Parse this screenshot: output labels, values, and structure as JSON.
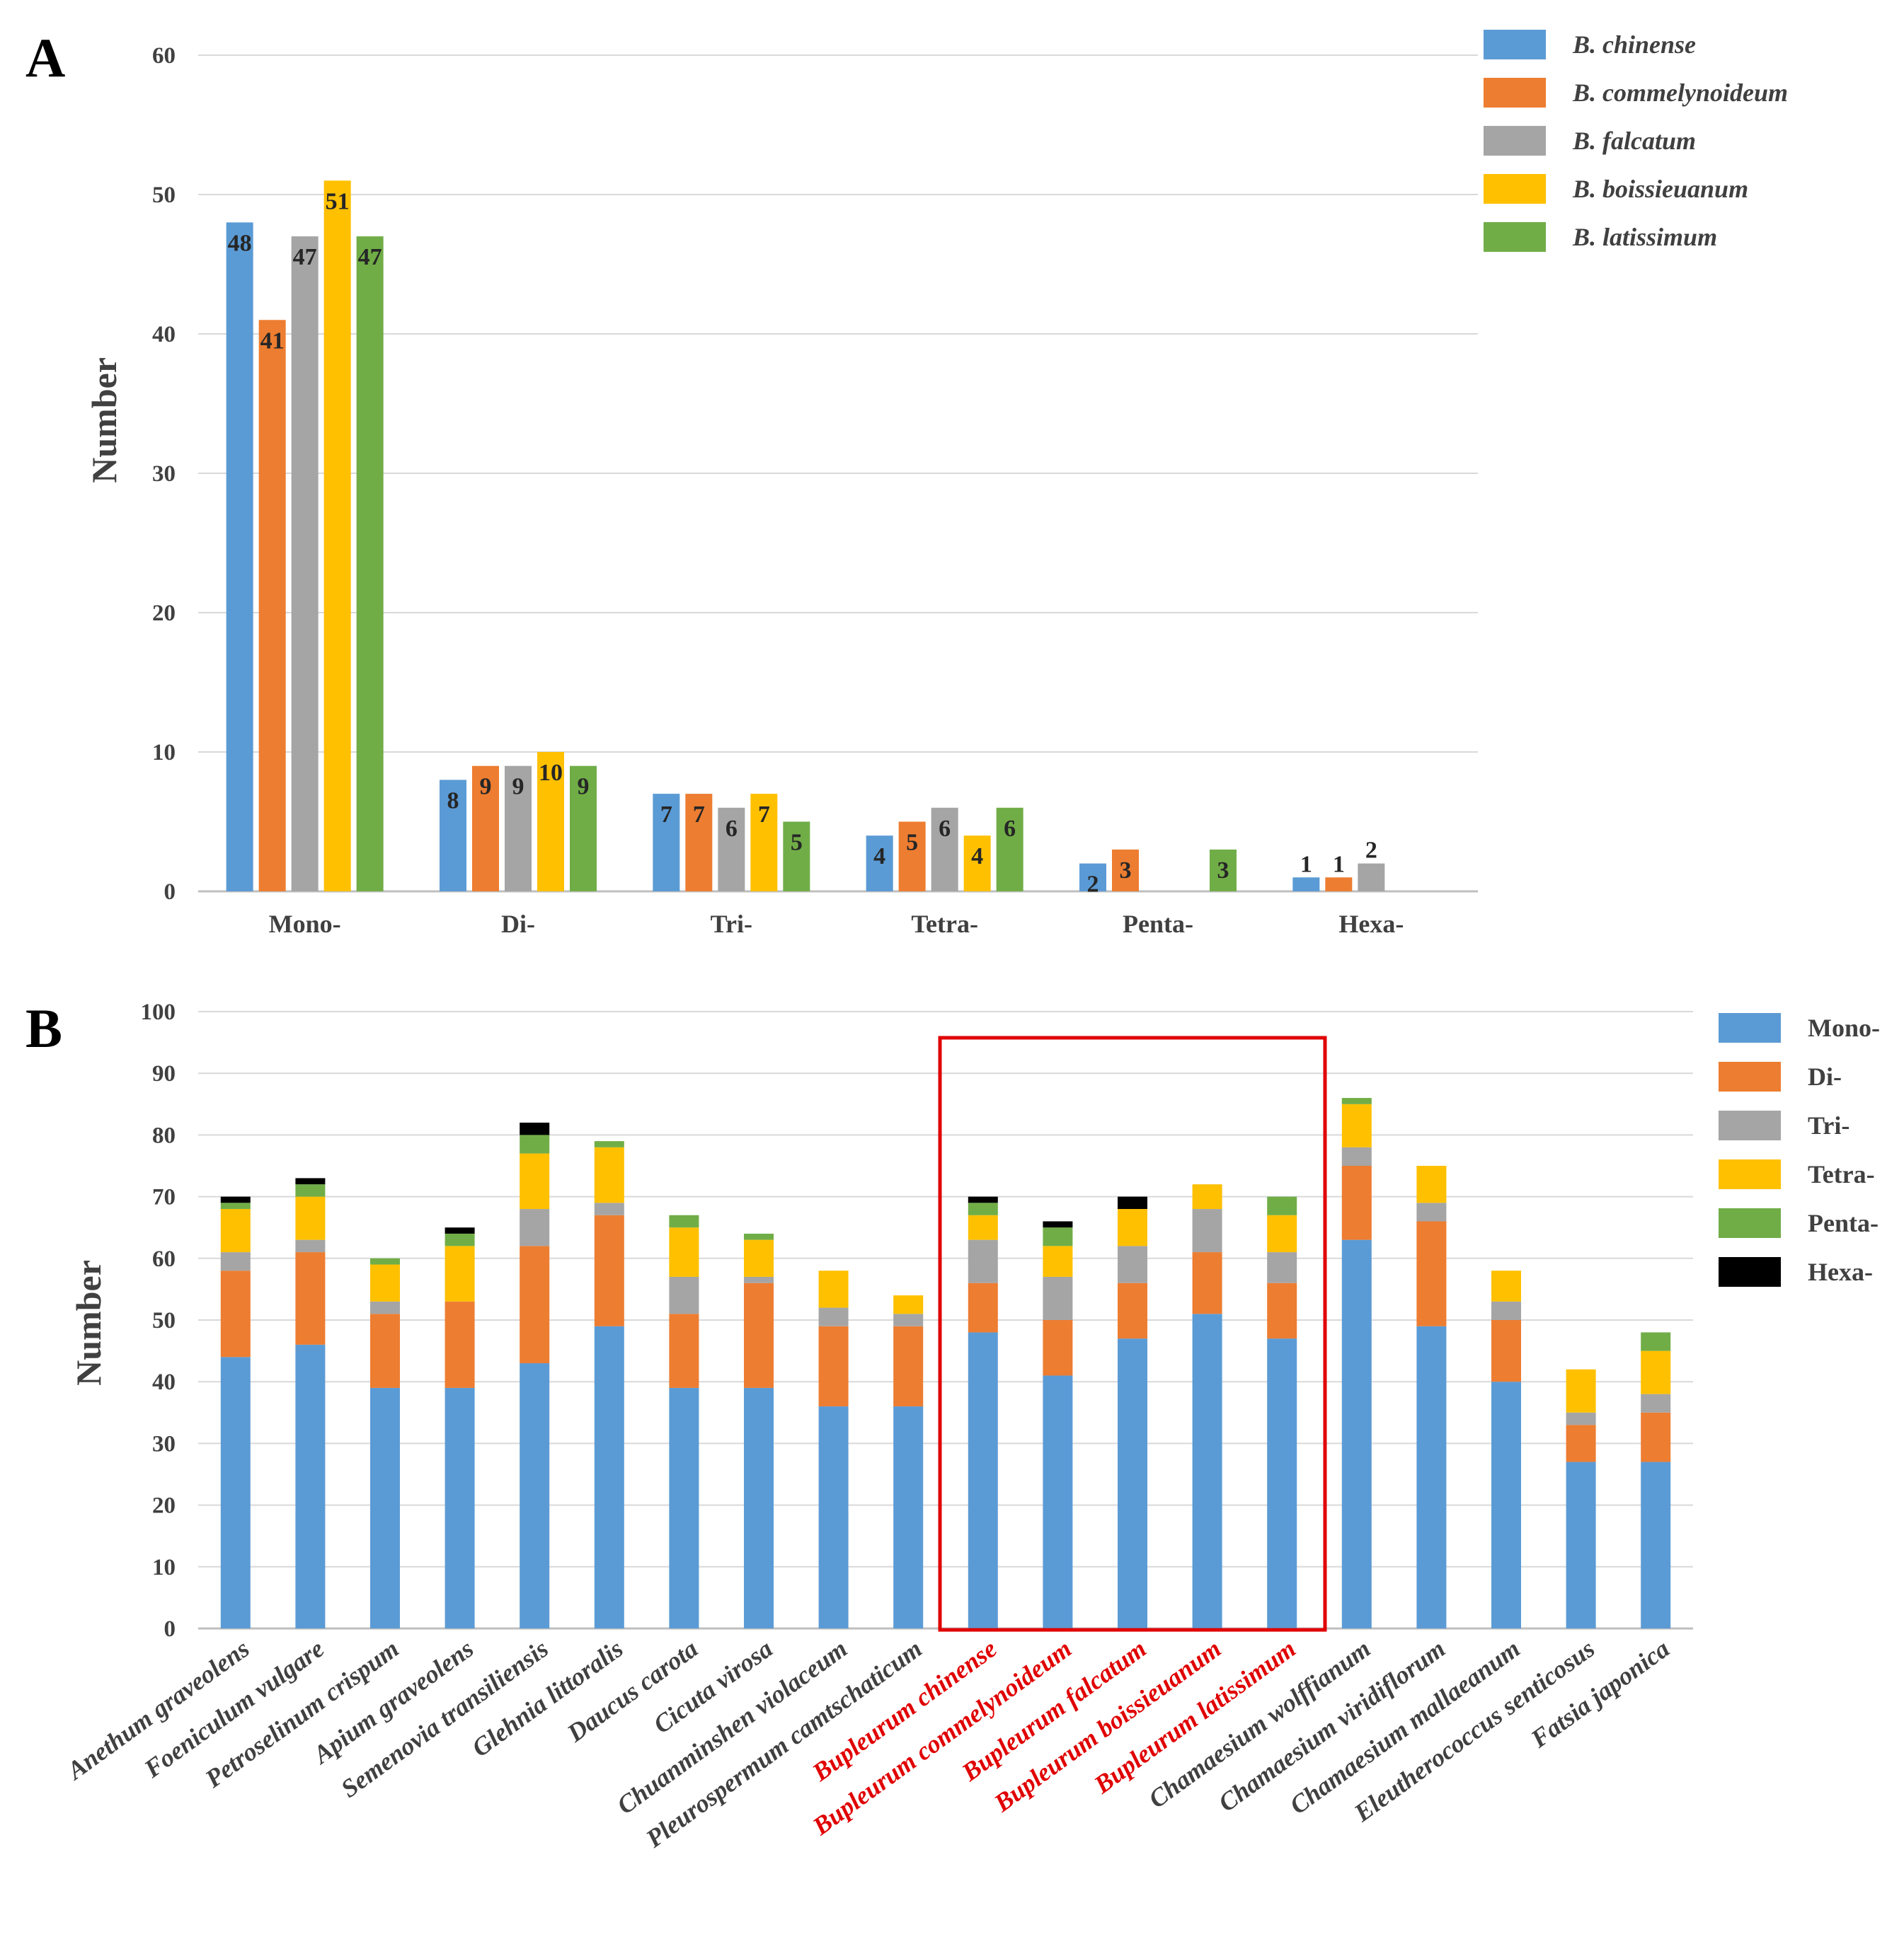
{
  "colors": {
    "blue": "#5B9BD5",
    "orange": "#ED7D31",
    "gray": "#A5A5A5",
    "yellow": "#FFC000",
    "green": "#70AD47",
    "black": "#000000",
    "highlight": "#E00000",
    "grid": "#D9D9D9",
    "axis": "#BFBFBF",
    "text": "#404040"
  },
  "chart_data": [
    {
      "panel": "A",
      "type": "bar",
      "ylabel": "Number",
      "ylim": [
        0,
        60
      ],
      "yticks": [
        0,
        10,
        20,
        30,
        40,
        50,
        60
      ],
      "categories": [
        "Mono-",
        "Di-",
        "Tri-",
        "Tetra-",
        "Penta-",
        "Hexa-"
      ],
      "series": [
        {
          "name": "B. chinense",
          "color": "#5B9BD5",
          "values": [
            48,
            8,
            7,
            4,
            2,
            1
          ]
        },
        {
          "name": "B. commelynoideum",
          "color": "#ED7D31",
          "values": [
            41,
            9,
            7,
            5,
            3,
            1
          ]
        },
        {
          "name": "B. falcatum",
          "color": "#A5A5A5",
          "values": [
            47,
            9,
            6,
            6,
            0,
            2
          ]
        },
        {
          "name": "B. boissieuanum",
          "color": "#FFC000",
          "values": [
            51,
            10,
            7,
            4,
            0,
            0
          ]
        },
        {
          "name": "B. latissimum",
          "color": "#70AD47",
          "values": [
            47,
            9,
            5,
            6,
            3,
            0
          ]
        }
      ],
      "legend": "top-right",
      "grid": true
    },
    {
      "panel": "B",
      "type": "bar",
      "stacked": true,
      "ylabel": "Number",
      "ylim": [
        0,
        100
      ],
      "yticks": [
        0,
        10,
        20,
        30,
        40,
        50,
        60,
        70,
        80,
        90,
        100
      ],
      "categories": [
        "Anethum graveolens",
        "Foeniculum vulgare",
        "Petroselinum crispum",
        "Apium graveolens",
        "Semenovia transiliensis",
        "Glehnia littoralis",
        "Daucus carota",
        "Cicuta virosa",
        "Chuanminshen violaceum",
        "Pleurospermum camtschaticum",
        "Bupleurum chinense",
        "Bupleurum commelynoideum",
        "Bupleurum falcatum",
        "Bupleurum boissieuanum",
        "Bupleurum latissimum",
        "Chamaesium wolffianum",
        "Chamaesium viridiflorum",
        "Chamaesium mallaeanum",
        "Eleutherococcus senticosus",
        "Fatsia japonica"
      ],
      "highlighted": [
        "Bupleurum chinense",
        "Bupleurum commelynoideum",
        "Bupleurum falcatum",
        "Bupleurum boissieuanum",
        "Bupleurum latissimum"
      ],
      "series": [
        {
          "name": "Mono-",
          "color": "#5B9BD5",
          "values": [
            44,
            46,
            39,
            39,
            43,
            49,
            39,
            39,
            36,
            36,
            48,
            41,
            47,
            51,
            47,
            63,
            49,
            40,
            27,
            27
          ]
        },
        {
          "name": "Di-",
          "color": "#ED7D31",
          "values": [
            14,
            15,
            12,
            14,
            19,
            18,
            12,
            17,
            13,
            13,
            8,
            9,
            9,
            10,
            9,
            12,
            17,
            10,
            6,
            8
          ]
        },
        {
          "name": "Tri-",
          "color": "#A5A5A5",
          "values": [
            3,
            2,
            2,
            0,
            6,
            2,
            6,
            1,
            3,
            2,
            7,
            7,
            6,
            7,
            5,
            3,
            3,
            3,
            2,
            3
          ]
        },
        {
          "name": "Tetra-",
          "color": "#FFC000",
          "values": [
            7,
            7,
            6,
            9,
            9,
            9,
            8,
            6,
            6,
            3,
            4,
            5,
            6,
            4,
            6,
            7,
            6,
            5,
            7,
            7
          ]
        },
        {
          "name": "Penta-",
          "color": "#70AD47",
          "values": [
            1,
            2,
            1,
            2,
            3,
            1,
            2,
            1,
            0,
            0,
            2,
            3,
            0,
            0,
            3,
            1,
            0,
            0,
            0,
            3
          ]
        },
        {
          "name": "Hexa-",
          "color": "#000000",
          "values": [
            1,
            1,
            0,
            1,
            2,
            0,
            0,
            0,
            0,
            0,
            1,
            1,
            2,
            0,
            0,
            0,
            0,
            0,
            0,
            0
          ]
        }
      ],
      "legend": "top-right",
      "grid": true
    }
  ]
}
